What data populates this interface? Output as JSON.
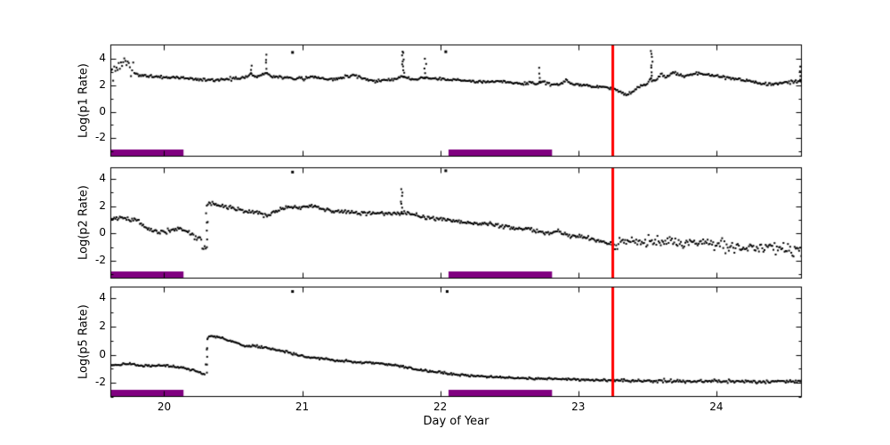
{
  "colors": {
    "background": "#ffffff",
    "axis": "#000000",
    "marker": "#000000",
    "event_line": "#ff0000",
    "interval_bar": "#800080"
  },
  "chart_data": {
    "type": "scatter",
    "xlabel": "Day of Year",
    "xlim": [
      19.61,
      24.62
    ],
    "xticks": [
      20,
      21,
      22,
      23,
      24
    ],
    "yticks": [
      -2,
      0,
      2,
      4
    ],
    "yticks_minor": [
      -3,
      -1,
      1,
      3
    ],
    "marker": {
      "shape": "square",
      "size": 2,
      "color": "#000000"
    },
    "red_line_x": 23.25,
    "bars": {
      "color": "#800080",
      "intervals": [
        [
          19.61,
          20.14
        ],
        [
          22.06,
          22.81
        ]
      ]
    },
    "panels": [
      {
        "ylabel": "Log(p1 Rate)",
        "ylim": [
          -3.4,
          5.1
        ],
        "noise": 0.055,
        "noise_regions": [
          {
            "from": 19.61,
            "to": 19.78,
            "sigma": 0.28
          }
        ],
        "trend": [
          [
            19.61,
            3.0
          ],
          [
            19.64,
            3.1
          ],
          [
            19.68,
            3.5
          ],
          [
            19.7,
            3.85
          ],
          [
            19.73,
            3.55
          ],
          [
            19.76,
            3.1
          ],
          [
            19.8,
            2.85
          ],
          [
            19.88,
            2.7
          ],
          [
            19.97,
            2.63
          ],
          [
            20.08,
            2.6
          ],
          [
            20.18,
            2.5
          ],
          [
            20.28,
            2.44
          ],
          [
            20.38,
            2.4
          ],
          [
            20.47,
            2.47
          ],
          [
            20.55,
            2.55
          ],
          [
            20.6,
            2.7
          ],
          [
            20.63,
            2.9
          ],
          [
            20.66,
            2.65
          ],
          [
            20.7,
            2.75
          ],
          [
            20.74,
            2.95
          ],
          [
            20.78,
            2.7
          ],
          [
            20.85,
            2.6
          ],
          [
            20.95,
            2.52
          ],
          [
            21.02,
            2.5
          ],
          [
            21.07,
            2.7
          ],
          [
            21.12,
            2.55
          ],
          [
            21.18,
            2.48
          ],
          [
            21.27,
            2.53
          ],
          [
            21.33,
            2.7
          ],
          [
            21.37,
            2.85
          ],
          [
            21.42,
            2.6
          ],
          [
            21.48,
            2.4
          ],
          [
            21.55,
            2.33
          ],
          [
            21.62,
            2.42
          ],
          [
            21.68,
            2.5
          ],
          [
            21.72,
            2.7
          ],
          [
            21.76,
            2.6
          ],
          [
            21.8,
            2.42
          ],
          [
            21.84,
            2.48
          ],
          [
            21.88,
            2.6
          ],
          [
            21.92,
            2.55
          ],
          [
            21.98,
            2.5
          ],
          [
            22.06,
            2.45
          ],
          [
            22.14,
            2.4
          ],
          [
            22.22,
            2.34
          ],
          [
            22.3,
            2.26
          ],
          [
            22.38,
            2.3
          ],
          [
            22.45,
            2.28
          ],
          [
            22.52,
            2.2
          ],
          [
            22.58,
            2.12
          ],
          [
            22.64,
            2.2
          ],
          [
            22.7,
            2.15
          ],
          [
            22.74,
            2.3
          ],
          [
            22.79,
            2.1
          ],
          [
            22.86,
            2.05
          ],
          [
            22.91,
            2.4
          ],
          [
            22.96,
            2.1
          ],
          [
            23.05,
            2.0
          ],
          [
            23.14,
            1.92
          ],
          [
            23.22,
            1.82
          ],
          [
            23.26,
            1.7
          ],
          [
            23.31,
            1.45
          ],
          [
            23.36,
            1.35
          ],
          [
            23.41,
            1.65
          ],
          [
            23.45,
            1.95
          ],
          [
            23.49,
            2.05
          ],
          [
            23.52,
            2.45
          ],
          [
            23.56,
            2.3
          ],
          [
            23.6,
            2.9
          ],
          [
            23.64,
            2.6
          ],
          [
            23.68,
            3.0
          ],
          [
            23.72,
            2.85
          ],
          [
            23.76,
            2.7
          ],
          [
            23.81,
            2.8
          ],
          [
            23.86,
            2.9
          ],
          [
            23.95,
            2.78
          ],
          [
            24.05,
            2.62
          ],
          [
            24.15,
            2.48
          ],
          [
            24.25,
            2.28
          ],
          [
            24.33,
            2.15
          ],
          [
            24.4,
            2.05
          ],
          [
            24.48,
            2.2
          ],
          [
            24.56,
            2.28
          ],
          [
            24.62,
            2.35
          ]
        ],
        "spikes": [
          [
            20.63,
            2.9,
            3.5,
            3
          ],
          [
            20.74,
            2.95,
            4.35,
            5
          ],
          [
            21.73,
            2.7,
            4.65,
            10
          ],
          [
            21.89,
            2.6,
            4.0,
            5
          ],
          [
            22.72,
            2.2,
            3.3,
            4
          ],
          [
            23.53,
            2.5,
            4.65,
            9
          ],
          [
            24.61,
            2.4,
            3.4,
            4
          ]
        ],
        "outliers": [
          [
            20.93,
            4.5
          ],
          [
            22.04,
            4.55
          ]
        ]
      },
      {
        "ylabel": "Log(p2 Rate)",
        "ylim": [
          -3.3,
          4.85
        ],
        "noise": 0.07,
        "noise_regions": [
          {
            "from": 20.19,
            "to": 20.3,
            "sigma": 0.15
          },
          {
            "from": 23.26,
            "to": 23.95,
            "sigma": 0.17
          },
          {
            "from": 23.95,
            "to": 24.62,
            "sigma": 0.26,
            "bias": -0.08
          }
        ],
        "trend": [
          [
            19.61,
            1.1
          ],
          [
            19.72,
            1.1
          ],
          [
            19.79,
            1.05
          ],
          [
            19.83,
            0.8
          ],
          [
            19.87,
            0.45
          ],
          [
            19.91,
            0.2
          ],
          [
            19.97,
            0.08
          ],
          [
            20.02,
            0.15
          ],
          [
            20.07,
            0.3
          ],
          [
            20.11,
            0.45
          ],
          [
            20.14,
            0.25
          ],
          [
            20.18,
            0.05
          ],
          [
            20.22,
            -0.15
          ],
          [
            20.26,
            -0.5
          ],
          [
            20.29,
            -0.9
          ],
          [
            20.302,
            -1.1
          ],
          [
            20.315,
            2.2
          ],
          [
            20.36,
            2.1
          ],
          [
            20.42,
            2.0
          ],
          [
            20.48,
            1.88
          ],
          [
            20.53,
            1.8
          ],
          [
            20.57,
            1.65
          ],
          [
            20.63,
            1.6
          ],
          [
            20.68,
            1.55
          ],
          [
            20.72,
            1.35
          ],
          [
            20.76,
            1.28
          ],
          [
            20.81,
            1.6
          ],
          [
            20.86,
            1.85
          ],
          [
            20.91,
            1.95
          ],
          [
            20.97,
            1.85
          ],
          [
            21.03,
            1.95
          ],
          [
            21.08,
            2.0
          ],
          [
            21.14,
            1.8
          ],
          [
            21.2,
            1.72
          ],
          [
            21.27,
            1.65
          ],
          [
            21.33,
            1.6
          ],
          [
            21.4,
            1.52
          ],
          [
            21.47,
            1.45
          ],
          [
            21.53,
            1.5
          ],
          [
            21.6,
            1.45
          ],
          [
            21.66,
            1.5
          ],
          [
            21.7,
            1.42
          ],
          [
            21.74,
            1.55
          ],
          [
            21.78,
            1.38
          ],
          [
            21.84,
            1.32
          ],
          [
            21.91,
            1.18
          ],
          [
            22.0,
            1.05
          ],
          [
            22.08,
            0.98
          ],
          [
            22.15,
            0.88
          ],
          [
            22.22,
            0.78
          ],
          [
            22.28,
            0.7
          ],
          [
            22.35,
            0.72
          ],
          [
            22.42,
            0.6
          ],
          [
            22.49,
            0.5
          ],
          [
            22.56,
            0.3
          ],
          [
            22.61,
            0.42
          ],
          [
            22.67,
            0.22
          ],
          [
            22.73,
            0.1
          ],
          [
            22.79,
            0.05
          ],
          [
            22.85,
            0.12
          ],
          [
            22.92,
            -0.1
          ],
          [
            23.0,
            -0.22
          ],
          [
            23.08,
            -0.38
          ],
          [
            23.16,
            -0.58
          ],
          [
            23.22,
            -0.72
          ],
          [
            23.26,
            -0.85
          ],
          [
            23.32,
            -0.6
          ],
          [
            23.38,
            -0.48
          ],
          [
            23.45,
            -0.62
          ],
          [
            23.52,
            -0.5
          ],
          [
            23.6,
            -0.66
          ],
          [
            23.68,
            -0.56
          ],
          [
            23.76,
            -0.72
          ],
          [
            23.85,
            -0.62
          ],
          [
            23.95,
            -0.78
          ],
          [
            24.05,
            -0.8
          ],
          [
            24.15,
            -0.92
          ],
          [
            24.25,
            -0.86
          ],
          [
            24.35,
            -1.0
          ],
          [
            24.45,
            -0.95
          ],
          [
            24.55,
            -1.05
          ],
          [
            24.62,
            -1.0
          ]
        ],
        "spikes": [
          [
            20.31,
            -1.0,
            2.1,
            6
          ],
          [
            21.72,
            1.6,
            3.25,
            7
          ]
        ],
        "outliers": [
          [
            20.93,
            4.5
          ],
          [
            22.04,
            4.6
          ]
        ]
      },
      {
        "ylabel": "Log(p5 Rate)",
        "ylim": [
          -3.0,
          4.85
        ],
        "noise": 0.035,
        "noise_regions": [
          {
            "from": 23.3,
            "to": 24.62,
            "sigma": 0.05
          }
        ],
        "trend": [
          [
            19.61,
            -0.7
          ],
          [
            19.67,
            -0.73
          ],
          [
            19.72,
            -0.68
          ],
          [
            19.77,
            -0.66
          ],
          [
            19.83,
            -0.78
          ],
          [
            19.9,
            -0.8
          ],
          [
            19.97,
            -0.77
          ],
          [
            20.04,
            -0.8
          ],
          [
            20.1,
            -0.88
          ],
          [
            20.16,
            -0.98
          ],
          [
            20.21,
            -1.1
          ],
          [
            20.26,
            -1.28
          ],
          [
            20.295,
            -1.45
          ],
          [
            20.315,
            1.2
          ],
          [
            20.33,
            1.35
          ],
          [
            20.36,
            1.3
          ],
          [
            20.4,
            1.22
          ],
          [
            20.45,
            1.08
          ],
          [
            20.5,
            0.92
          ],
          [
            20.55,
            0.72
          ],
          [
            20.6,
            0.58
          ],
          [
            20.65,
            0.63
          ],
          [
            20.7,
            0.56
          ],
          [
            20.76,
            0.45
          ],
          [
            20.82,
            0.33
          ],
          [
            20.88,
            0.2
          ],
          [
            20.94,
            0.05
          ],
          [
            21.0,
            -0.1
          ],
          [
            21.08,
            -0.22
          ],
          [
            21.18,
            -0.33
          ],
          [
            21.28,
            -0.44
          ],
          [
            21.4,
            -0.52
          ],
          [
            21.5,
            -0.58
          ],
          [
            21.6,
            -0.64
          ],
          [
            21.68,
            -0.72
          ],
          [
            21.74,
            -0.88
          ],
          [
            21.8,
            -1.0
          ],
          [
            21.88,
            -1.12
          ],
          [
            21.96,
            -1.22
          ],
          [
            22.05,
            -1.32
          ],
          [
            22.15,
            -1.44
          ],
          [
            22.25,
            -1.52
          ],
          [
            22.38,
            -1.58
          ],
          [
            22.5,
            -1.62
          ],
          [
            22.65,
            -1.68
          ],
          [
            22.8,
            -1.72
          ],
          [
            22.95,
            -1.76
          ],
          [
            23.1,
            -1.8
          ],
          [
            23.25,
            -1.83
          ],
          [
            23.45,
            -1.85
          ],
          [
            23.65,
            -1.86
          ],
          [
            23.85,
            -1.87
          ],
          [
            24.05,
            -1.88
          ],
          [
            24.25,
            -1.89
          ],
          [
            24.45,
            -1.9
          ],
          [
            24.62,
            -1.9
          ]
        ],
        "spikes": [
          [
            20.31,
            -1.3,
            1.1,
            5
          ]
        ],
        "outliers": [
          [
            20.93,
            4.5
          ],
          [
            22.05,
            4.5
          ]
        ]
      }
    ]
  }
}
